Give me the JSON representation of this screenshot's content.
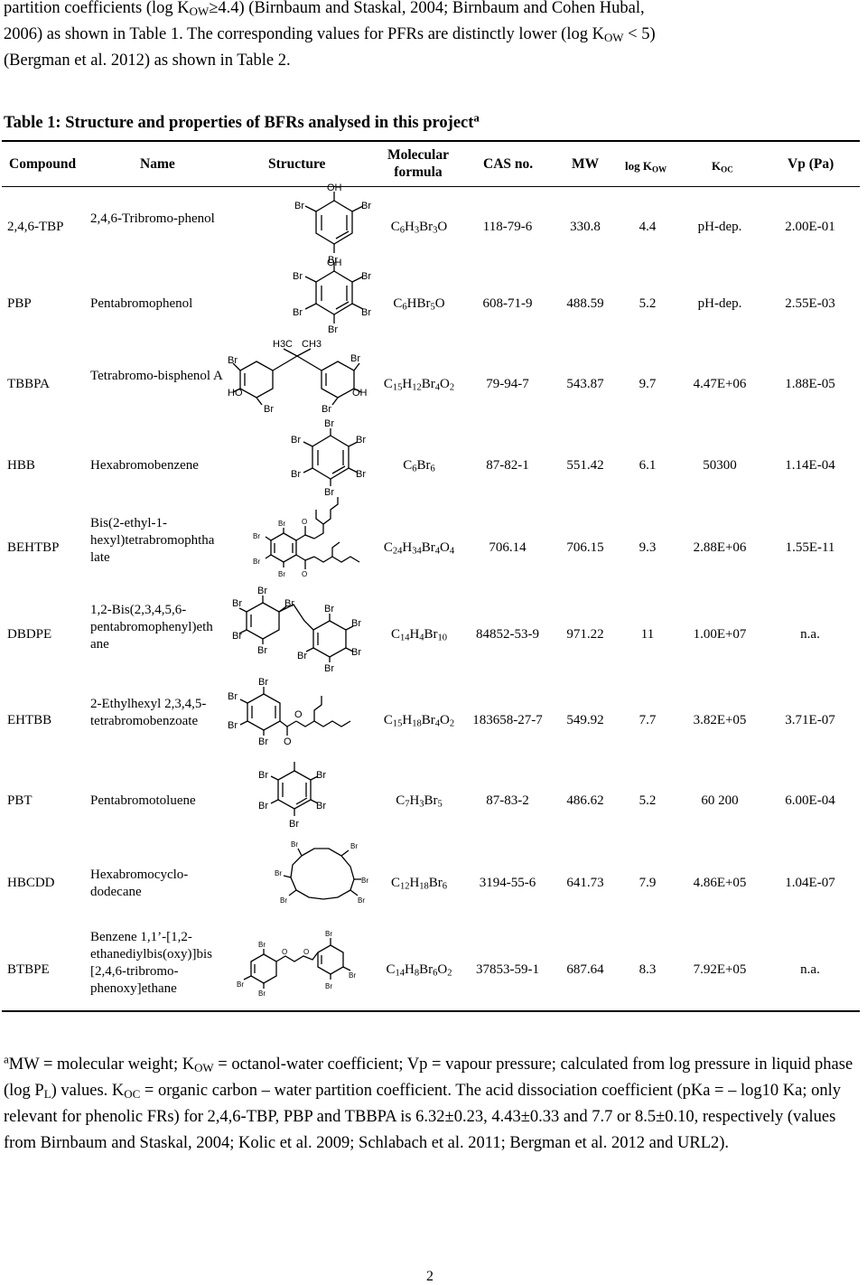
{
  "intro": {
    "line1_a": "partition coefficients (log K",
    "line1_sub": "OW",
    "line1_b": "≥4.4) (Birnbaum and Staskal, 2004; Birnbaum and Cohen Hubal,",
    "line2_a": "2006) as shown in Table 1. The corresponding values for PFRs are distinctly lower (log K",
    "line2_sub": "OW",
    "line2_b": " < 5)",
    "line3": "(Bergman et al. 2012) as shown in Table 2."
  },
  "table": {
    "caption": "Table 1: Structure and properties of BFRs analysed in this project",
    "caption_sup": "a",
    "headers": {
      "compound": "Compound",
      "name": "Name",
      "structure": "Structure",
      "formula_l1": "Molecular",
      "formula_l2": "formula",
      "cas": "CAS no.",
      "mw": "MW",
      "logkow_a": "log K",
      "logkow_sub": "OW",
      "koc_a": "K",
      "koc_sub": "OC",
      "vp": "Vp (Pa)"
    },
    "rows": [
      {
        "compound": "2,4,6-TBP",
        "name": "2,4,6-Tribromo-phenol",
        "f": [
          "C",
          "6",
          "H",
          "3",
          "Br",
          "3",
          "O",
          ""
        ],
        "cas": "118-79-6",
        "mw": "330.8",
        "logkow": "4.4",
        "koc": "pH-dep.",
        "vp": "2.00E-01"
      },
      {
        "compound": "PBP",
        "name": "Pentabromophenol",
        "f": [
          "C",
          "6",
          "HBr",
          "5",
          "O",
          ""
        ],
        "cas": "608-71-9",
        "mw": "488.59",
        "logkow": "5.2",
        "koc": "pH-dep.",
        "vp": "2.55E-03"
      },
      {
        "compound": "TBBPA",
        "name": "Tetrabromo-bisphenol A",
        "f": [
          "C",
          "15",
          "H",
          "12",
          "Br",
          "4",
          "O",
          "2"
        ],
        "cas": "79-94-7",
        "mw": "543.87",
        "logkow": "9.7",
        "koc": "4.47E+06",
        "vp": "1.88E-05"
      },
      {
        "compound": "HBB",
        "name": "Hexabromobenzene",
        "f": [
          "C",
          "6",
          "Br",
          "6"
        ],
        "cas": "87-82-1",
        "mw": "551.42",
        "logkow": "6.1",
        "koc": "50300",
        "vp": "1.14E-04"
      },
      {
        "compound": "BEHTBP",
        "name": "Bis(2-ethyl-1-hexyl)tetrabromophtha late",
        "f": [
          "C",
          "24",
          "H",
          "34",
          "Br",
          "4",
          "O",
          "4"
        ],
        "cas": "706.14",
        "mw": "706.15",
        "logkow": "9.3",
        "koc": "2.88E+06",
        "vp": "1.55E-11"
      },
      {
        "compound": "DBDPE",
        "name": "1,2-Bis(2,3,4,5,6-pentabromophenyl)eth ane",
        "f": [
          "C",
          "14",
          "H",
          "4",
          "Br",
          "10"
        ],
        "cas": "84852-53-9",
        "mw": "971.22",
        "logkow": "11",
        "koc": "1.00E+07",
        "vp": "n.a."
      },
      {
        "compound": "EHTBB",
        "name": "2-Ethylhexyl 2,3,4,5-tetrabromobenzoate",
        "f": [
          "C",
          "15",
          "H",
          "18",
          "Br",
          "4",
          "O",
          "2"
        ],
        "cas": "183658-27-7",
        "mw": "549.92",
        "logkow": "7.7",
        "koc": "3.82E+05",
        "vp": "3.71E-07"
      },
      {
        "compound": "PBT",
        "name": "Pentabromotoluene",
        "f": [
          "C",
          "7",
          "H",
          "3",
          "Br",
          "5"
        ],
        "cas": "87-83-2",
        "mw": "486.62",
        "logkow": "5.2",
        "koc": "60 200",
        "vp": "6.00E-04"
      },
      {
        "compound": "HBCDD",
        "name": "Hexabromocyclo-dodecane",
        "f": [
          "C",
          "12",
          "H",
          "18",
          "Br",
          "6"
        ],
        "cas": "3194-55-6",
        "mw": "641.73",
        "logkow": "7.9",
        "koc": "4.86E+05",
        "vp": "1.04E-07"
      },
      {
        "compound": "BTBPE",
        "name": "Benzene 1,1’-[1,2-ethanediylbis(oxy)]bis [2,4,6-tribromo-phenoxy]ethane",
        "f": [
          "C",
          "14",
          "H",
          "8",
          "Br",
          "6",
          "O",
          "2"
        ],
        "cas": "37853-59-1",
        "mw": "687.64",
        "logkow": "8.3",
        "koc": "7.92E+05",
        "vp": "n.a."
      }
    ]
  },
  "struct_labels": {
    "br": "Br",
    "oh": "OH",
    "ho": "HO",
    "o": "O",
    "h3c": "H3C",
    "ch3": "CH3"
  },
  "footnote": {
    "sup": "a",
    "t1": "MW = molecular weight; K",
    "s1": "OW",
    "t2": " = octanol-water coefficient; Vp = vapour pressure; calculated from log pressure in liquid phase (log P",
    "s2": "L",
    "t3": ") values. K",
    "s3": "OC",
    "t4": " = organic carbon – water partition coefficient. The acid dissociation coefficient (pKa = – log10 Ka; only relevant for phenolic FRs) for 2,4,6-TBP, PBP and TBBPA is 6.32±0.23, 4.43±0.33 and 7.7 or 8.5±0.10, respectively (values from Birnbaum and Staskal, 2004; Kolic et al. 2009; Schlabach et al. 2011; Bergman et al. 2012 and URL2)."
  },
  "page_number": "2"
}
